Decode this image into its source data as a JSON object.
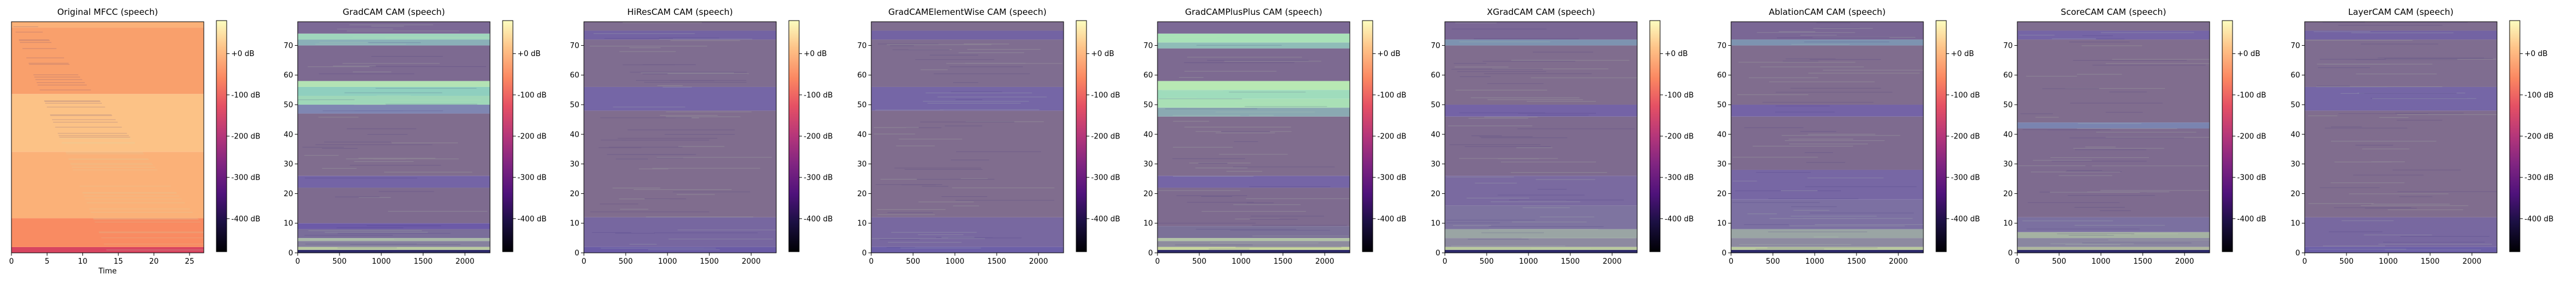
{
  "figure": {
    "background": "#ffffff"
  },
  "chart_data": [
    {
      "type": "heatmap",
      "title": "Original MFCC (speech)",
      "xlabel": "Time",
      "ylabel": "",
      "xlim": [
        0,
        27
      ],
      "ylim": [
        0,
        80
      ],
      "xticks": [
        0,
        5,
        10,
        15,
        20,
        25
      ],
      "yticks": [],
      "colormap": "magma",
      "colorbar": {
        "ticks": [
          "+0 dB",
          "-100 dB",
          "-200 dB",
          "-300 dB",
          "-400 dB"
        ],
        "values": [
          0,
          -100,
          -200,
          -300,
          -400
        ],
        "range": [
          -480,
          80
        ]
      },
      "bands": [
        {
          "y": [
            0,
            2
          ],
          "color": "#d84560"
        },
        {
          "y": [
            2,
            12
          ],
          "color": "#f98b62"
        },
        {
          "y": [
            12,
            35
          ],
          "color": "#fbb178"
        },
        {
          "y": [
            35,
            55
          ],
          "color": "#fcc286"
        },
        {
          "y": [
            55,
            78
          ],
          "color": "#f9a06c"
        },
        {
          "y": [
            78,
            80
          ],
          "color": "#fbb178"
        }
      ]
    },
    {
      "type": "heatmap",
      "title": "GradCAM CAM (speech)",
      "xlabel": "",
      "ylabel": "",
      "xlim": [
        0,
        2300
      ],
      "ylim": [
        0,
        78
      ],
      "xticks": [
        0,
        500,
        1000,
        1500,
        2000
      ],
      "yticks": [
        0,
        10,
        20,
        30,
        40,
        50,
        60,
        70
      ],
      "colormap": "magma",
      "colorbar": {
        "ticks": [
          "+0 dB",
          "-100 dB",
          "-200 dB",
          "-300 dB",
          "-400 dB"
        ],
        "values": [
          0,
          -100,
          -200,
          -300,
          -400
        ],
        "range": [
          -480,
          80
        ]
      },
      "bands": [
        {
          "y": [
            0,
            1
          ],
          "color": "#2d2a6a"
        },
        {
          "y": [
            1,
            2
          ],
          "color": "#b9c9a0"
        },
        {
          "y": [
            2,
            4
          ],
          "color": "#86819e"
        },
        {
          "y": [
            4,
            5
          ],
          "color": "#a9b8a8"
        },
        {
          "y": [
            5,
            8
          ],
          "color": "#7a6e9a"
        },
        {
          "y": [
            8,
            10
          ],
          "color": "#6c5aa8"
        },
        {
          "y": [
            10,
            22
          ],
          "color": "#7e6b8f"
        },
        {
          "y": [
            22,
            26
          ],
          "color": "#7464a6"
        },
        {
          "y": [
            26,
            47
          ],
          "color": "#806d8e"
        },
        {
          "y": [
            47,
            50
          ],
          "color": "#7f86b2"
        },
        {
          "y": [
            50,
            53
          ],
          "color": "#9fd7b9"
        },
        {
          "y": [
            53,
            56
          ],
          "color": "#8fcfbf"
        },
        {
          "y": [
            56,
            58
          ],
          "color": "#b3e3b4"
        },
        {
          "y": [
            58,
            70
          ],
          "color": "#7d6a91"
        },
        {
          "y": [
            70,
            72
          ],
          "color": "#8ab0b8"
        },
        {
          "y": [
            72,
            74
          ],
          "color": "#9fd6bd"
        },
        {
          "y": [
            74,
            78
          ],
          "color": "#7c6996"
        }
      ]
    },
    {
      "type": "heatmap",
      "title": "HiResCAM CAM (speech)",
      "xlabel": "",
      "ylabel": "",
      "xlim": [
        0,
        2300
      ],
      "ylim": [
        0,
        78
      ],
      "xticks": [
        0,
        500,
        1000,
        1500,
        2000
      ],
      "yticks": [
        0,
        10,
        20,
        30,
        40,
        50,
        60,
        70
      ],
      "colormap": "magma",
      "colorbar": {
        "ticks": [
          "+0 dB",
          "-100 dB",
          "-200 dB",
          "-300 dB",
          "-400 dB"
        ],
        "values": [
          0,
          -100,
          -200,
          -300,
          -400
        ],
        "range": [
          -480,
          80
        ]
      },
      "bands": [
        {
          "y": [
            0,
            2
          ],
          "color": "#6a5ba6"
        },
        {
          "y": [
            2,
            12
          ],
          "color": "#7767a0"
        },
        {
          "y": [
            12,
            48
          ],
          "color": "#806d8e"
        },
        {
          "y": [
            48,
            56
          ],
          "color": "#7566a6"
        },
        {
          "y": [
            56,
            72
          ],
          "color": "#7f6d90"
        },
        {
          "y": [
            72,
            75
          ],
          "color": "#7363a3"
        },
        {
          "y": [
            75,
            78
          ],
          "color": "#7f6d90"
        }
      ]
    },
    {
      "type": "heatmap",
      "title": "GradCAMElementWise CAM (speech)",
      "xlabel": "",
      "ylabel": "",
      "xlim": [
        0,
        2300
      ],
      "ylim": [
        0,
        78
      ],
      "xticks": [
        0,
        500,
        1000,
        1500,
        2000
      ],
      "yticks": [
        0,
        10,
        20,
        30,
        40,
        50,
        60,
        70
      ],
      "colormap": "magma",
      "colorbar": {
        "ticks": [
          "+0 dB",
          "-100 dB",
          "-200 dB",
          "-300 dB",
          "-400 dB"
        ],
        "values": [
          0,
          -100,
          -200,
          -300,
          -400
        ],
        "range": [
          -480,
          80
        ]
      },
      "bands": [
        {
          "y": [
            0,
            2
          ],
          "color": "#6c5fa8"
        },
        {
          "y": [
            2,
            12
          ],
          "color": "#7868a0"
        },
        {
          "y": [
            12,
            48
          ],
          "color": "#806d8e"
        },
        {
          "y": [
            48,
            56
          ],
          "color": "#7566a6"
        },
        {
          "y": [
            56,
            72
          ],
          "color": "#7f6d90"
        },
        {
          "y": [
            72,
            75
          ],
          "color": "#7363a3"
        },
        {
          "y": [
            75,
            78
          ],
          "color": "#7f6d90"
        }
      ]
    },
    {
      "type": "heatmap",
      "title": "GradCAMPlusPlus CAM (speech)",
      "xlabel": "",
      "ylabel": "",
      "xlim": [
        0,
        2300
      ],
      "ylim": [
        0,
        78
      ],
      "xticks": [
        0,
        500,
        1000,
        1500,
        2000
      ],
      "yticks": [
        0,
        10,
        20,
        30,
        40,
        50,
        60,
        70
      ],
      "colormap": "magma",
      "colorbar": {
        "ticks": [
          "+0 dB",
          "-100 dB",
          "-200 dB",
          "-300 dB",
          "-400 dB"
        ],
        "values": [
          0,
          -100,
          -200,
          -300,
          -400
        ],
        "range": [
          -480,
          80
        ]
      },
      "bands": [
        {
          "y": [
            0,
            1
          ],
          "color": "#2d2a6a"
        },
        {
          "y": [
            1,
            2
          ],
          "color": "#c7d59c"
        },
        {
          "y": [
            2,
            4
          ],
          "color": "#8e8c9e"
        },
        {
          "y": [
            4,
            5
          ],
          "color": "#b1c3a6"
        },
        {
          "y": [
            5,
            9
          ],
          "color": "#7b7198"
        },
        {
          "y": [
            9,
            22
          ],
          "color": "#7e6b8f"
        },
        {
          "y": [
            22,
            26
          ],
          "color": "#7565a6"
        },
        {
          "y": [
            26,
            46
          ],
          "color": "#806d8e"
        },
        {
          "y": [
            46,
            49
          ],
          "color": "#8aa9b2"
        },
        {
          "y": [
            49,
            52
          ],
          "color": "#a9e0b6"
        },
        {
          "y": [
            52,
            55
          ],
          "color": "#9fdcbc"
        },
        {
          "y": [
            55,
            58
          ],
          "color": "#b8e8b3"
        },
        {
          "y": [
            58,
            69
          ],
          "color": "#7d6a91"
        },
        {
          "y": [
            69,
            71
          ],
          "color": "#8fbdb8"
        },
        {
          "y": [
            71,
            74
          ],
          "color": "#a9e2b8"
        },
        {
          "y": [
            74,
            78
          ],
          "color": "#7c6996"
        }
      ]
    },
    {
      "type": "heatmap",
      "title": "XGradCAM CAM (speech)",
      "xlabel": "",
      "ylabel": "",
      "xlim": [
        0,
        2300
      ],
      "ylim": [
        0,
        78
      ],
      "xticks": [
        0,
        500,
        1000,
        1500,
        2000
      ],
      "yticks": [
        0,
        10,
        20,
        30,
        40,
        50,
        60,
        70
      ],
      "colormap": "magma",
      "colorbar": {
        "ticks": [
          "+0 dB",
          "-100 dB",
          "-200 dB",
          "-300 dB",
          "-400 dB"
        ],
        "values": [
          0,
          -100,
          -200,
          -300,
          -400
        ],
        "range": [
          -480,
          80
        ]
      },
      "bands": [
        {
          "y": [
            0,
            1
          ],
          "color": "#2d2a6a"
        },
        {
          "y": [
            1,
            2
          ],
          "color": "#b9c99e"
        },
        {
          "y": [
            2,
            5
          ],
          "color": "#8d8aa0"
        },
        {
          "y": [
            5,
            8
          ],
          "color": "#9aa5a4"
        },
        {
          "y": [
            8,
            16
          ],
          "color": "#7e74a0"
        },
        {
          "y": [
            16,
            26
          ],
          "color": "#7a6aa0"
        },
        {
          "y": [
            26,
            46
          ],
          "color": "#7e6b8f"
        },
        {
          "y": [
            46,
            50
          ],
          "color": "#7463a6"
        },
        {
          "y": [
            50,
            70
          ],
          "color": "#806d8e"
        },
        {
          "y": [
            70,
            72
          ],
          "color": "#7d93b0"
        },
        {
          "y": [
            72,
            78
          ],
          "color": "#7a6795"
        }
      ]
    },
    {
      "type": "heatmap",
      "title": "AblationCAM CAM (speech)",
      "xlabel": "",
      "ylabel": "",
      "xlim": [
        0,
        2300
      ],
      "ylim": [
        0,
        78
      ],
      "xticks": [
        0,
        500,
        1000,
        1500,
        2000
      ],
      "yticks": [
        0,
        10,
        20,
        30,
        40,
        50,
        60,
        70
      ],
      "colormap": "magma",
      "colorbar": {
        "ticks": [
          "+0 dB",
          "-100 dB",
          "-200 dB",
          "-300 dB",
          "-400 dB"
        ],
        "values": [
          0,
          -100,
          -200,
          -300,
          -400
        ],
        "range": [
          -480,
          80
        ]
      },
      "bands": [
        {
          "y": [
            0,
            1
          ],
          "color": "#2d2a6a"
        },
        {
          "y": [
            1,
            2
          ],
          "color": "#b9c99e"
        },
        {
          "y": [
            2,
            5
          ],
          "color": "#8d8aa0"
        },
        {
          "y": [
            5,
            8
          ],
          "color": "#9aa5a4"
        },
        {
          "y": [
            8,
            18
          ],
          "color": "#7c70a2"
        },
        {
          "y": [
            18,
            28
          ],
          "color": "#7767a4"
        },
        {
          "y": [
            28,
            46
          ],
          "color": "#7e6b8f"
        },
        {
          "y": [
            46,
            50
          ],
          "color": "#7463a6"
        },
        {
          "y": [
            50,
            70
          ],
          "color": "#806d8e"
        },
        {
          "y": [
            70,
            72
          ],
          "color": "#7d93b0"
        },
        {
          "y": [
            72,
            78
          ],
          "color": "#7a6795"
        }
      ]
    },
    {
      "type": "heatmap",
      "title": "ScoreCAM CAM (speech)",
      "xlabel": "",
      "ylabel": "",
      "xlim": [
        0,
        2300
      ],
      "ylim": [
        0,
        78
      ],
      "xticks": [
        0,
        500,
        1000,
        1500,
        2000
      ],
      "yticks": [
        0,
        10,
        20,
        30,
        40,
        50,
        60,
        70
      ],
      "colormap": "magma",
      "colorbar": {
        "ticks": [
          "+0 dB",
          "-100 dB",
          "-200 dB",
          "-300 dB",
          "-400 dB"
        ],
        "values": [
          0,
          -100,
          -200,
          -300,
          -400
        ],
        "range": [
          -480,
          80
        ]
      },
      "bands": [
        {
          "y": [
            0,
            1
          ],
          "color": "#2d2a6a"
        },
        {
          "y": [
            1,
            2
          ],
          "color": "#aeb69e"
        },
        {
          "y": [
            2,
            5
          ],
          "color": "#8a86a0"
        },
        {
          "y": [
            5,
            7
          ],
          "color": "#a5b2a2"
        },
        {
          "y": [
            7,
            12
          ],
          "color": "#7b70a0"
        },
        {
          "y": [
            12,
            42
          ],
          "color": "#7e6b8f"
        },
        {
          "y": [
            42,
            44
          ],
          "color": "#7a84b0"
        },
        {
          "y": [
            44,
            72
          ],
          "color": "#806d8e"
        },
        {
          "y": [
            72,
            75
          ],
          "color": "#7565a6"
        },
        {
          "y": [
            75,
            78
          ],
          "color": "#7f6d90"
        }
      ]
    },
    {
      "type": "heatmap",
      "title": "LayerCAM CAM (speech)",
      "xlabel": "",
      "ylabel": "",
      "xlim": [
        0,
        2300
      ],
      "ylim": [
        0,
        78
      ],
      "xticks": [
        0,
        500,
        1000,
        1500,
        2000
      ],
      "yticks": [
        0,
        10,
        20,
        30,
        40,
        50,
        60,
        70
      ],
      "colormap": "magma",
      "colorbar": {
        "ticks": [
          "+0 dB",
          "-100 dB",
          "-200 dB",
          "-300 dB",
          "-400 dB"
        ],
        "values": [
          0,
          -100,
          -200,
          -300,
          -400
        ],
        "range": [
          -480,
          80
        ]
      },
      "bands": [
        {
          "y": [
            0,
            2
          ],
          "color": "#6c5fa8"
        },
        {
          "y": [
            2,
            12
          ],
          "color": "#7868a0"
        },
        {
          "y": [
            12,
            48
          ],
          "color": "#806d8e"
        },
        {
          "y": [
            48,
            56
          ],
          "color": "#7566a6"
        },
        {
          "y": [
            56,
            72
          ],
          "color": "#7f6d90"
        },
        {
          "y": [
            72,
            75
          ],
          "color": "#7363a3"
        },
        {
          "y": [
            75,
            78
          ],
          "color": "#7f6d90"
        }
      ]
    }
  ]
}
